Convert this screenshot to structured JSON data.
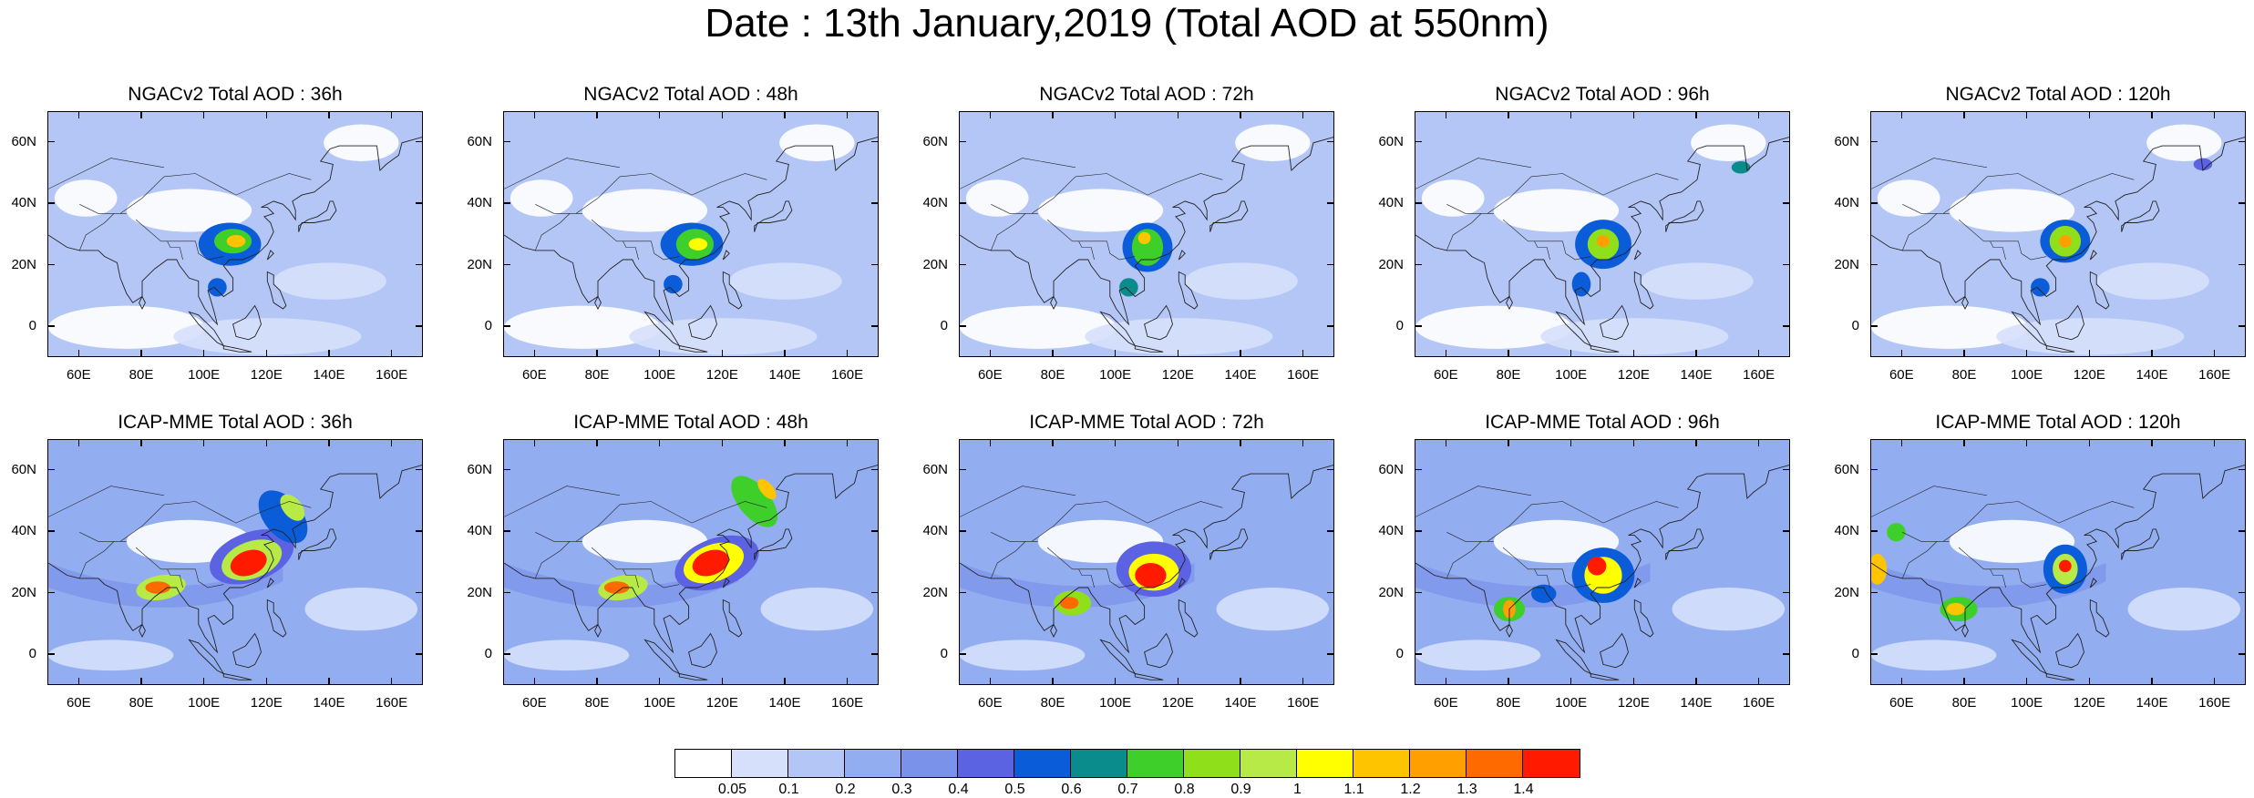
{
  "title": "Date : 13th January,2019 (Total AOD at 550nm)",
  "panels": [
    {
      "title": "NGACv2 Total AOD : 36h",
      "model": "NGACv2",
      "lead": "36h"
    },
    {
      "title": "NGACv2 Total AOD : 48h",
      "model": "NGACv2",
      "lead": "48h"
    },
    {
      "title": "NGACv2 Total AOD : 72h",
      "model": "NGACv2",
      "lead": "72h"
    },
    {
      "title": "NGACv2 Total AOD : 96h",
      "model": "NGACv2",
      "lead": "96h"
    },
    {
      "title": "NGACv2 Total AOD : 120h",
      "model": "NGACv2",
      "lead": "120h"
    },
    {
      "title": "ICAP-MME Total AOD : 36h",
      "model": "ICAP-MME",
      "lead": "36h"
    },
    {
      "title": "ICAP-MME Total AOD : 48h",
      "model": "ICAP-MME",
      "lead": "48h"
    },
    {
      "title": "ICAP-MME Total AOD : 72h",
      "model": "ICAP-MME",
      "lead": "72h"
    },
    {
      "title": "ICAP-MME Total AOD : 96h",
      "model": "ICAP-MME",
      "lead": "96h"
    },
    {
      "title": "ICAP-MME Total AOD : 120h",
      "model": "ICAP-MME",
      "lead": "120h"
    }
  ],
  "map_axes": {
    "lat_ticks": [
      {
        "value": 60,
        "label": "60N"
      },
      {
        "value": 40,
        "label": "40N"
      },
      {
        "value": 20,
        "label": "20N"
      },
      {
        "value": 0,
        "label": "0"
      }
    ],
    "lon_ticks": [
      {
        "value": 60,
        "label": "60E"
      },
      {
        "value": 80,
        "label": "80E"
      },
      {
        "value": 100,
        "label": "100E"
      },
      {
        "value": 120,
        "label": "120E"
      },
      {
        "value": 140,
        "label": "140E"
      },
      {
        "value": 160,
        "label": "160E"
      }
    ],
    "lon_range": [
      50,
      170
    ],
    "lat_range": [
      -10,
      70
    ]
  },
  "colorbar": {
    "colors": [
      "#ffffff",
      "#d6e0fb",
      "#b4c6f5",
      "#93aef0",
      "#7a92ea",
      "#5c63e2",
      "#0a5cd8",
      "#0b8c8c",
      "#3fcf2b",
      "#8fe01a",
      "#b7ea46",
      "#ffff00",
      "#ffc400",
      "#ffa000",
      "#ff6a00",
      "#ff1a00"
    ],
    "labels": [
      "0.05",
      "0.1",
      "0.2",
      "0.3",
      "0.4",
      "0.5",
      "0.6",
      "0.7",
      "0.8",
      "0.9",
      "1",
      "1.1",
      "1.2",
      "1.3",
      "1.4"
    ]
  }
}
